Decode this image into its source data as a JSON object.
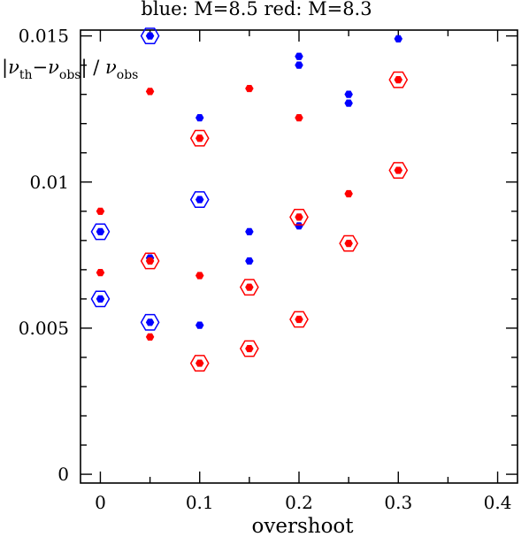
{
  "chart_data": {
    "type": "scatter",
    "title": "blue: M=8.5  red: M=8.3",
    "xlabel": "overshoot",
    "ylabel": {
      "bar_open": "|",
      "nu1": "ν",
      "sub1": "th",
      "minus": "−",
      "nu2": "ν",
      "sub2": "obs",
      "bar_close": "|",
      "slash": " / ",
      "nu3": "ν",
      "sub3": "obs"
    },
    "xlim": [
      -0.02,
      0.42
    ],
    "ylim": [
      -0.0003,
      0.0152
    ],
    "xticks": [
      0,
      0.1,
      0.2,
      0.3,
      0.4
    ],
    "xtick_labels": [
      "0",
      "0.1",
      "0.2",
      "0.3",
      "0.4"
    ],
    "yticks": [
      0,
      0.005,
      0.01,
      0.015
    ],
    "ytick_labels": [
      "0",
      "0.005",
      "0.01",
      "0.015"
    ],
    "x_minor_step": 0.05,
    "y_minor_step": 0.001,
    "series": [
      {
        "color": "#0000ff",
        "points": [
          {
            "x": 0,
            "y": 0.0083,
            "circled": true
          },
          {
            "x": 0,
            "y": 0.006,
            "circled": true
          },
          {
            "x": 0.05,
            "y": 0.015,
            "circled": true
          },
          {
            "x": 0.05,
            "y": 0.0074,
            "circled": false
          },
          {
            "x": 0.05,
            "y": 0.0052,
            "circled": true
          },
          {
            "x": 0.1,
            "y": 0.0122,
            "circled": false
          },
          {
            "x": 0.1,
            "y": 0.0094,
            "circled": true
          },
          {
            "x": 0.1,
            "y": 0.0051,
            "circled": false
          },
          {
            "x": 0.15,
            "y": 0.0083,
            "circled": false
          },
          {
            "x": 0.15,
            "y": 0.0073,
            "circled": false
          },
          {
            "x": 0.2,
            "y": 0.0143,
            "circled": false
          },
          {
            "x": 0.2,
            "y": 0.014,
            "circled": false
          },
          {
            "x": 0.2,
            "y": 0.0085,
            "circled": false
          },
          {
            "x": 0.25,
            "y": 0.013,
            "circled": false
          },
          {
            "x": 0.25,
            "y": 0.0127,
            "circled": false
          },
          {
            "x": 0.3,
            "y": 0.0149,
            "circled": false
          }
        ]
      },
      {
        "color": "#ff0000",
        "points": [
          {
            "x": 0,
            "y": 0.009,
            "circled": false
          },
          {
            "x": 0,
            "y": 0.0069,
            "circled": false
          },
          {
            "x": 0.05,
            "y": 0.0131,
            "circled": false
          },
          {
            "x": 0.05,
            "y": 0.0073,
            "circled": true
          },
          {
            "x": 0.05,
            "y": 0.0047,
            "circled": false
          },
          {
            "x": 0.1,
            "y": 0.0115,
            "circled": true
          },
          {
            "x": 0.1,
            "y": 0.0068,
            "circled": false
          },
          {
            "x": 0.1,
            "y": 0.0038,
            "circled": true
          },
          {
            "x": 0.15,
            "y": 0.0132,
            "circled": false
          },
          {
            "x": 0.15,
            "y": 0.0064,
            "circled": true
          },
          {
            "x": 0.15,
            "y": 0.0043,
            "circled": true
          },
          {
            "x": 0.2,
            "y": 0.0122,
            "circled": false
          },
          {
            "x": 0.2,
            "y": 0.0088,
            "circled": true
          },
          {
            "x": 0.2,
            "y": 0.0053,
            "circled": true
          },
          {
            "x": 0.25,
            "y": 0.0096,
            "circled": false
          },
          {
            "x": 0.25,
            "y": 0.0079,
            "circled": true
          },
          {
            "x": 0.3,
            "y": 0.0135,
            "circled": true
          },
          {
            "x": 0.3,
            "y": 0.0104,
            "circled": true
          }
        ]
      }
    ]
  }
}
